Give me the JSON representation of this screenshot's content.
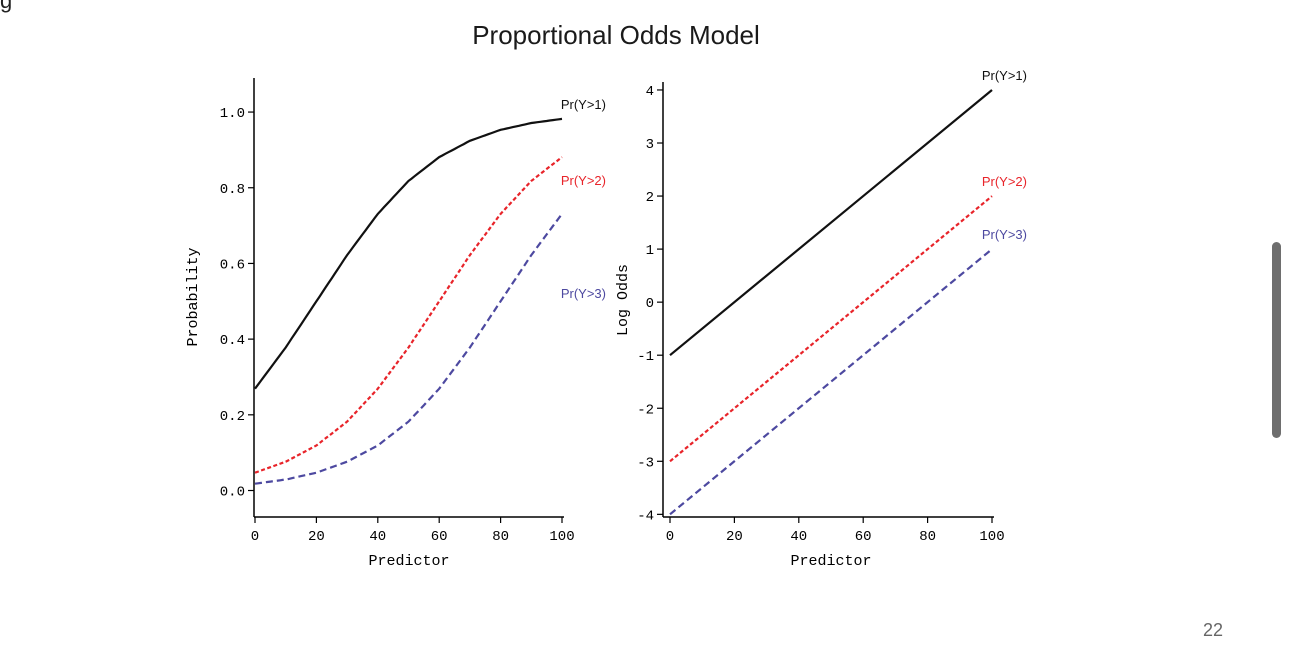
{
  "slide": {
    "top_text": "g",
    "title": "Proportional Odds Model",
    "page_number": "22"
  },
  "colors": {
    "y1": "#111111",
    "y2": "#e8242a",
    "y3": "#4d49a0"
  },
  "chart_data": [
    {
      "type": "line",
      "title": "",
      "xlabel": "Predictor",
      "ylabel": "Probability",
      "xlim": [
        0,
        100
      ],
      "ylim": [
        -0.07,
        1.09
      ],
      "xticks": [
        "0",
        "20",
        "40",
        "60",
        "80",
        "100"
      ],
      "yticks": [
        "0.0",
        "0.2",
        "0.4",
        "0.6",
        "0.8",
        "1.0"
      ],
      "series": [
        {
          "name": "Pr(Y>1)",
          "style": "solid",
          "x": [
            0,
            10,
            20,
            30,
            40,
            50,
            60,
            70,
            80,
            90,
            100
          ],
          "y": [
            0.269,
            0.378,
            0.5,
            0.622,
            0.731,
            0.818,
            0.881,
            0.924,
            0.953,
            0.971,
            0.982
          ]
        },
        {
          "name": "Pr(Y>2)",
          "style": "dashed",
          "x": [
            0,
            10,
            20,
            30,
            40,
            50,
            60,
            70,
            80,
            90,
            100
          ],
          "y": [
            0.047,
            0.076,
            0.119,
            0.182,
            0.269,
            0.378,
            0.5,
            0.622,
            0.731,
            0.818,
            0.881
          ]
        },
        {
          "name": "Pr(Y>3)",
          "style": "dashed",
          "x": [
            0,
            10,
            20,
            30,
            40,
            50,
            60,
            70,
            80,
            90,
            100
          ],
          "y": [
            0.018,
            0.029,
            0.047,
            0.076,
            0.119,
            0.182,
            0.269,
            0.378,
            0.5,
            0.622,
            0.731
          ]
        }
      ]
    },
    {
      "type": "line",
      "title": "",
      "xlabel": "Predictor",
      "ylabel": "Log Odds",
      "xlim": [
        0,
        100
      ],
      "ylim": [
        -4.05,
        4.15
      ],
      "xticks": [
        "0",
        "20",
        "40",
        "60",
        "80",
        "100"
      ],
      "yticks": [
        "-4",
        "-3",
        "-2",
        "-1",
        "0",
        "1",
        "2",
        "3",
        "4"
      ],
      "series": [
        {
          "name": "Pr(Y>1)",
          "style": "solid",
          "x": [
            0,
            100
          ],
          "y": [
            -1,
            4
          ]
        },
        {
          "name": "Pr(Y>2)",
          "style": "dashed",
          "x": [
            0,
            100
          ],
          "y": [
            -3,
            2
          ]
        },
        {
          "name": "Pr(Y>3)",
          "style": "dashed",
          "x": [
            0,
            100
          ],
          "y": [
            -4,
            1
          ]
        }
      ]
    }
  ]
}
